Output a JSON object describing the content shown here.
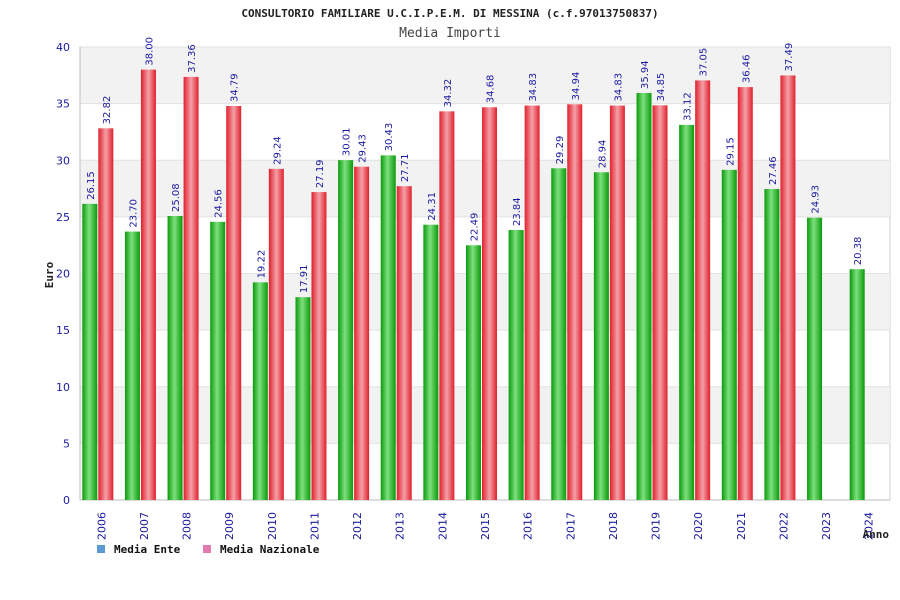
{
  "colors": {
    "ente": "#0a9a0a",
    "ente_light": "#7ee07e",
    "nazionale": "#e0202c",
    "nazionale_light": "#f4a0a8",
    "legend_ente": "#5b9bd5",
    "legend_nazionale": "#e07ab0",
    "band": "#f2f2f2",
    "label": "#1a1aa0"
  },
  "chart_data": {
    "type": "bar",
    "title": "CONSULTORIO FAMILIARE U.C.I.P.E.M. DI MESSINA (c.f.97013750837)",
    "subtitle": "Media Importi",
    "xlabel": "Anno",
    "ylabel": "Euro",
    "ylim": [
      0,
      40
    ],
    "yticks": [
      0,
      5,
      10,
      15,
      20,
      25,
      30,
      35,
      40
    ],
    "categories": [
      "2006",
      "2007",
      "2008",
      "2009",
      "2010",
      "2011",
      "2012",
      "2013",
      "2014",
      "2015",
      "2016",
      "2017",
      "2018",
      "2019",
      "2020",
      "2021",
      "2022",
      "2023",
      "2024"
    ],
    "series": [
      {
        "name": "Media Ente",
        "values": [
          26.15,
          23.7,
          25.08,
          24.56,
          19.22,
          17.91,
          30.01,
          30.43,
          24.31,
          22.49,
          23.84,
          29.29,
          28.94,
          35.94,
          33.12,
          29.15,
          27.46,
          24.93,
          20.38
        ],
        "labels": [
          "26.15",
          "23.70",
          "25.08",
          "24.56",
          "19.22",
          "17.91",
          "30.01",
          "30.43",
          "24.31",
          "22.49",
          "23.84",
          "29.29",
          "28.94",
          "35.94",
          "33.12",
          "29.15",
          "27.46",
          "24.93",
          "20.38"
        ]
      },
      {
        "name": "Media Nazionale",
        "values": [
          32.82,
          38.0,
          37.36,
          34.79,
          29.24,
          27.19,
          29.43,
          27.71,
          34.32,
          34.68,
          34.83,
          34.94,
          34.83,
          34.85,
          37.05,
          36.46,
          37.49,
          null,
          null
        ],
        "labels": [
          "32.82",
          "38.00",
          "37.36",
          "34.79",
          "29.24",
          "27.19",
          "29.43",
          "27.71",
          "34.32",
          "34.68",
          "34.83",
          "34.94",
          "34.83",
          "34.85",
          "37.05",
          "36.46",
          "37.49",
          null,
          null
        ]
      }
    ],
    "grid": true,
    "legend_position": "bottom-left"
  }
}
